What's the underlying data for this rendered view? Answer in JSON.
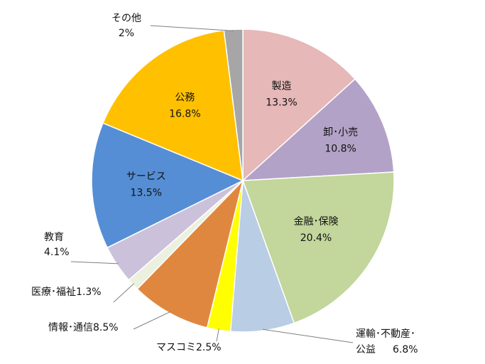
{
  "chart_data": {
    "type": "pie",
    "start_angle_deg": 0,
    "direction": "clockwise",
    "legend": "none",
    "slices": [
      {
        "name": "製造",
        "value": 13.3,
        "label": "13.3%",
        "color": "#E6B8B7"
      },
      {
        "name": "卸･小売",
        "value": 10.8,
        "label": "10.8%",
        "color": "#B3A2C7"
      },
      {
        "name": "金融･保険",
        "value": 20.4,
        "label": "20.4%",
        "color": "#C3D69B"
      },
      {
        "name": "運輸･不動産･\n公益",
        "value": 6.8,
        "label": "6.8%",
        "color": "#B9CDE5"
      },
      {
        "name": "マスコミ",
        "value": 2.5,
        "label": "2.5%",
        "color": "#FFFF00"
      },
      {
        "name": "情報･通信",
        "value": 8.5,
        "label": "8.5%",
        "color": "#E0873F"
      },
      {
        "name": "医療･福祉",
        "value": 1.3,
        "label": "1.3%",
        "color": "#EBF1DE"
      },
      {
        "name": "教育",
        "value": 4.1,
        "label": "4.1%",
        "color": "#CCC1DA"
      },
      {
        "name": "サービス",
        "value": 13.5,
        "label": "13.5%",
        "color": "#558ED5"
      },
      {
        "name": "公務",
        "value": 16.8,
        "label": "16.8%",
        "color": "#FFC000"
      },
      {
        "name": "その他",
        "value": 2,
        "label": "2%",
        "color": "#A6A6A6"
      }
    ]
  }
}
